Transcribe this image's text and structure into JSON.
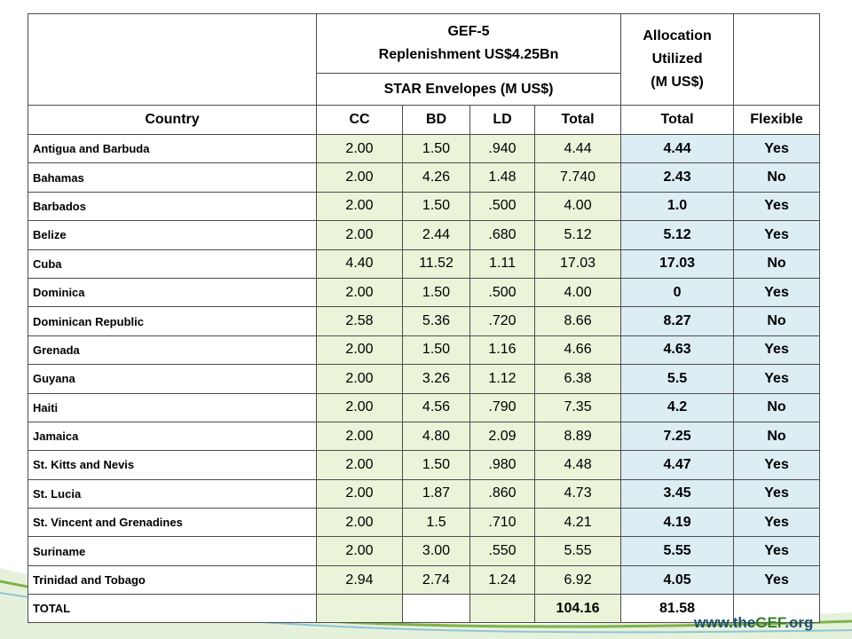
{
  "header": {
    "gef_title": "GEF-5",
    "replenishment": "Replenishment  US$4.25Bn",
    "star_envelopes": "STAR Envelopes (M US$)",
    "allocation_line1": "Allocation",
    "allocation_line2": "Utilized",
    "allocation_line3": "(M US$)"
  },
  "columns": {
    "country": "Country",
    "cc": "CC",
    "bd": "BD",
    "ld": "LD",
    "total": "Total",
    "util_total": "Total",
    "flexible": "Flexible"
  },
  "rows": [
    {
      "country": "Antigua and Barbuda",
      "cc": "2.00",
      "bd": "1.50",
      "ld": ".940",
      "total": "4.44",
      "util": "4.44",
      "flex": "Yes"
    },
    {
      "country": "Bahamas",
      "cc": "2.00",
      "bd": "4.26",
      "ld": "1.48",
      "total": "7.740",
      "util": "2.43",
      "flex": "No"
    },
    {
      "country": "Barbados",
      "cc": "2.00",
      "bd": "1.50",
      "ld": ".500",
      "total": "4.00",
      "util": "1.0",
      "flex": "Yes"
    },
    {
      "country": "Belize",
      "cc": "2.00",
      "bd": "2.44",
      "ld": ".680",
      "total": "5.12",
      "util": "5.12",
      "flex": "Yes"
    },
    {
      "country": "Cuba",
      "cc": "4.40",
      "bd": "11.52",
      "ld": "1.11",
      "total": "17.03",
      "util": "17.03",
      "flex": "No"
    },
    {
      "country": "Dominica",
      "cc": "2.00",
      "bd": "1.50",
      "ld": ".500",
      "total": "4.00",
      "util": "0",
      "flex": "Yes"
    },
    {
      "country": "Dominican Republic",
      "cc": "2.58",
      "bd": "5.36",
      "ld": ".720",
      "total": "8.66",
      "util": "8.27",
      "flex": "No"
    },
    {
      "country": "Grenada",
      "cc": "2.00",
      "bd": "1.50",
      "ld": "1.16",
      "total": "4.66",
      "util": "4.63",
      "flex": "Yes"
    },
    {
      "country": "Guyana",
      "cc": "2.00",
      "bd": "3.26",
      "ld": "1.12",
      "total": "6.38",
      "util": "5.5",
      "flex": "Yes"
    },
    {
      "country": "Haiti",
      "cc": "2.00",
      "bd": "4.56",
      "ld": ".790",
      "total": "7.35",
      "util": "4.2",
      "flex": "No"
    },
    {
      "country": "Jamaica",
      "cc": "2.00",
      "bd": "4.80",
      "ld": "2.09",
      "total": "8.89",
      "util": "7.25",
      "flex": "No"
    },
    {
      "country": "St. Kitts and Nevis",
      "cc": "2.00",
      "bd": "1.50",
      "ld": ".980",
      "total": "4.48",
      "util": "4.47",
      "flex": "Yes"
    },
    {
      "country": "St. Lucia",
      "cc": "2.00",
      "bd": "1.87",
      "ld": ".860",
      "total": "4.73",
      "util": "3.45",
      "flex": "Yes"
    },
    {
      "country": "St. Vincent and Grenadines",
      "cc": "2.00",
      "bd": "1.5",
      "ld": ".710",
      "total": "4.21",
      "util": "4.19",
      "flex": "Yes"
    },
    {
      "country": "Suriname",
      "cc": "2.00",
      "bd": "3.00",
      "ld": ".550",
      "total": "5.55",
      "util": "5.55",
      "flex": "Yes"
    },
    {
      "country": "Trinidad and Tobago",
      "cc": "2.94",
      "bd": "2.74",
      "ld": "1.24",
      "total": "6.92",
      "util": "4.05",
      "flex": "Yes"
    }
  ],
  "totals": {
    "label": "TOTAL",
    "star_total": "104.16",
    "util_total": "81.58"
  },
  "logo": {
    "prefix": "www.the",
    "brand": "GEF",
    "suffix": ".org"
  },
  "colors": {
    "star_cell_bg": "#ebf3d9",
    "util_cell_bg": "#dcedf3",
    "swoosh_green": "#7fb24a",
    "swoosh_blue": "#8ec5d6"
  }
}
